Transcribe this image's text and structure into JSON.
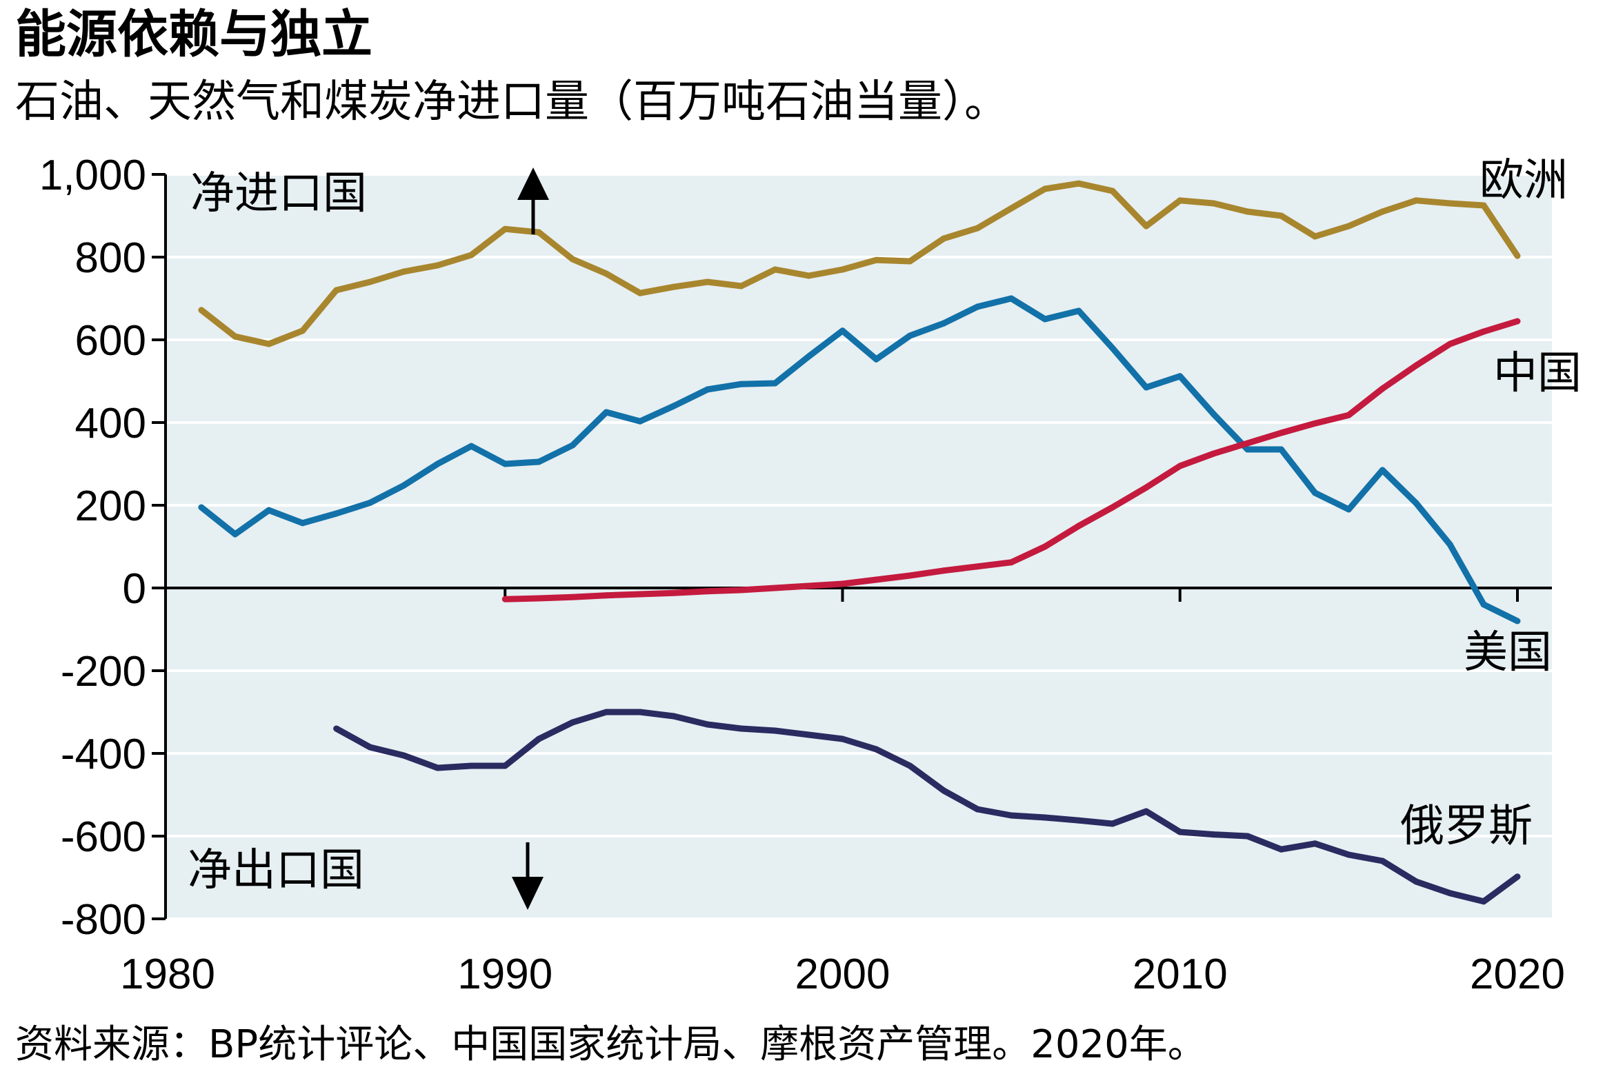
{
  "title": "能源依赖与独立",
  "subtitle": "石油、天然气和煤炭净进口量（百万吨石油当量）。",
  "source": "资料来源：BP统计评论、中国国家统计局、摩根资产管理。2020年。",
  "annotations": {
    "net_importers": "净进口国",
    "net_exporters": "净出口国"
  },
  "colors": {
    "plot_background": "#e6eff2",
    "gridline": "#ffffff",
    "zero_line": "#000000"
  },
  "chart_data": {
    "type": "line",
    "title": "",
    "xlabel": "",
    "ylabel": "",
    "xlim": [
      1980,
      2021
    ],
    "ylim": [
      -800,
      1000
    ],
    "x_ticks": [
      1980,
      1990,
      2000,
      2010,
      2020
    ],
    "x_tick_labels": [
      "1980",
      "1990",
      "2000",
      "2010",
      "2020"
    ],
    "y_ticks": [
      1000,
      800,
      600,
      400,
      200,
      0,
      -200,
      -400,
      -600,
      -800
    ],
    "y_tick_labels": [
      "1,000",
      "800",
      "600",
      "400",
      "200",
      "0",
      "-200",
      "-400",
      "-600",
      "-800"
    ],
    "grid": true,
    "legend": "inline labels at line ends",
    "series": [
      {
        "name": "欧洲",
        "color": "#a8862e",
        "x": [
          1981,
          1982,
          1983,
          1984,
          1985,
          1986,
          1987,
          1988,
          1989,
          1990,
          1991,
          1992,
          1993,
          1994,
          1995,
          1996,
          1997,
          1998,
          1999,
          2000,
          2001,
          2002,
          2003,
          2004,
          2005,
          2006,
          2007,
          2008,
          2009,
          2010,
          2011,
          2012,
          2013,
          2014,
          2015,
          2016,
          2017,
          2018,
          2019,
          2020
        ],
        "values": [
          672,
          608,
          590,
          622,
          720,
          740,
          765,
          780,
          805,
          868,
          860,
          795,
          760,
          713,
          728,
          740,
          730,
          770,
          755,
          770,
          793,
          790,
          845,
          870,
          918,
          965,
          978,
          960,
          875,
          937,
          930,
          910,
          900,
          850,
          875,
          910,
          937,
          930,
          925,
          803
        ]
      },
      {
        "name": "美国",
        "color": "#1271a8",
        "x": [
          1981,
          1982,
          1983,
          1984,
          1985,
          1986,
          1987,
          1988,
          1989,
          1990,
          1991,
          1992,
          1993,
          1994,
          1995,
          1996,
          1997,
          1998,
          1999,
          2000,
          2001,
          2002,
          2003,
          2004,
          2005,
          2006,
          2007,
          2008,
          2009,
          2010,
          2011,
          2012,
          2013,
          2014,
          2015,
          2016,
          2017,
          2018,
          2019,
          2020
        ],
        "values": [
          195,
          130,
          188,
          157,
          180,
          206,
          248,
          300,
          343,
          300,
          305,
          345,
          425,
          403,
          440,
          480,
          493,
          495,
          560,
          622,
          553,
          610,
          640,
          680,
          700,
          650,
          670,
          580,
          485,
          512,
          420,
          335,
          335,
          230,
          190,
          285,
          205,
          105,
          -40,
          -80
        ]
      },
      {
        "name": "中国",
        "color": "#c41a3e",
        "x": [
          1990,
          1991,
          1992,
          1993,
          1994,
          1995,
          1996,
          1997,
          1998,
          1999,
          2000,
          2001,
          2002,
          2003,
          2004,
          2005,
          2006,
          2007,
          2008,
          2009,
          2010,
          2011,
          2012,
          2013,
          2014,
          2015,
          2016,
          2017,
          2018,
          2019,
          2020
        ],
        "values": [
          -27,
          -25,
          -22,
          -18,
          -15,
          -12,
          -8,
          -5,
          0,
          5,
          10,
          20,
          30,
          42,
          52,
          62,
          100,
          150,
          195,
          243,
          295,
          325,
          350,
          375,
          398,
          418,
          482,
          538,
          590,
          620,
          645
        ]
      },
      {
        "name": "俄罗斯",
        "color": "#2a2b60",
        "x": [
          1985,
          1986,
          1987,
          1988,
          1989,
          1990,
          1991,
          1992,
          1993,
          1994,
          1995,
          1996,
          1997,
          1998,
          1999,
          2000,
          2001,
          2002,
          2003,
          2004,
          2005,
          2006,
          2007,
          2008,
          2009,
          2010,
          2011,
          2012,
          2013,
          2014,
          2015,
          2016,
          2017,
          2018,
          2019,
          2020
        ],
        "values": [
          -340,
          -385,
          -405,
          -435,
          -430,
          -430,
          -365,
          -325,
          -300,
          -300,
          -310,
          -330,
          -340,
          -345,
          -355,
          -365,
          -390,
          -430,
          -490,
          -535,
          -550,
          -555,
          -562,
          -570,
          -540,
          -590,
          -596,
          -600,
          -632,
          -618,
          -645,
          -660,
          -710,
          -738,
          -758,
          -698
        ]
      }
    ]
  }
}
